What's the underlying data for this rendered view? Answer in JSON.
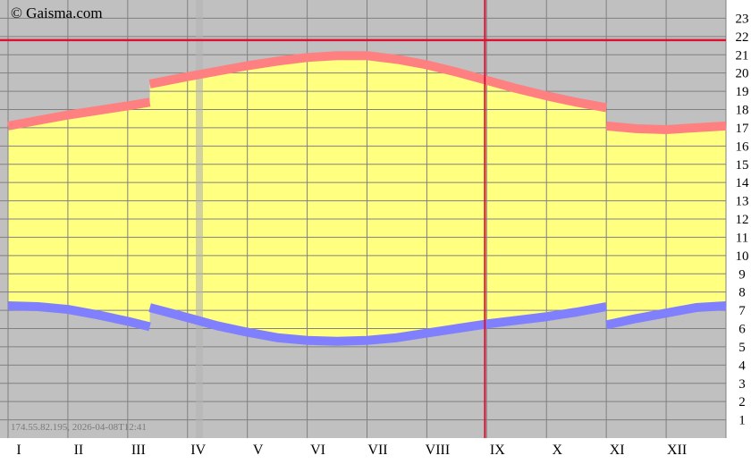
{
  "copyright": "© Gaisma.com",
  "footer_text": "174.55.82.195, 2026-04-08T12:41",
  "colors": {
    "background": "#c0c0c0",
    "daylight": "#ffff80",
    "sunrise": "#8080ff",
    "sunset": "#ff8080",
    "grid": "#808080",
    "marker": "#dd1133"
  },
  "chart_data": {
    "type": "area",
    "title": "",
    "xlabel": "",
    "ylabel": "",
    "x_tick_labels": [
      "I",
      "II",
      "III",
      "IV",
      "V",
      "VI",
      "VII",
      "VIII",
      "IX",
      "X",
      "XI",
      "XII"
    ],
    "y_tick_labels": [
      "1",
      "2",
      "3",
      "4",
      "5",
      "6",
      "7",
      "8",
      "9",
      "10",
      "11",
      "12",
      "13",
      "14",
      "15",
      "16",
      "17",
      "18",
      "19",
      "20",
      "21",
      "22",
      "23"
    ],
    "ylim": [
      0,
      24
    ],
    "xlim": [
      0,
      12
    ],
    "grid": true,
    "month_starts": [
      0,
      1,
      2,
      3,
      4,
      5,
      6,
      7,
      8,
      9,
      10,
      11
    ],
    "dst_change_points": [
      2.37,
      10.0
    ],
    "series": [
      {
        "key": "sunrise",
        "x": [
          0,
          0.5,
          1.0,
          1.5,
          2.0,
          2.37,
          2.37,
          3.0,
          3.5,
          4.0,
          4.5,
          5.0,
          5.5,
          6.0,
          6.5,
          7.0,
          7.5,
          8.0,
          8.5,
          9.0,
          9.5,
          10.0,
          10.0,
          10.5,
          11.0,
          11.5,
          12.0
        ],
        "values": [
          7.25,
          7.2,
          7.05,
          6.75,
          6.4,
          6.1,
          7.15,
          6.6,
          6.15,
          5.8,
          5.5,
          5.35,
          5.3,
          5.35,
          5.5,
          5.75,
          6.0,
          6.25,
          6.45,
          6.65,
          6.9,
          7.2,
          6.2,
          6.55,
          6.85,
          7.15,
          7.25
        ]
      },
      {
        "key": "sunset",
        "x": [
          0,
          0.5,
          1.0,
          1.5,
          2.0,
          2.37,
          2.37,
          3.0,
          3.5,
          4.0,
          4.5,
          5.0,
          5.5,
          6.0,
          6.5,
          7.0,
          7.5,
          8.0,
          8.5,
          9.0,
          9.5,
          10.0,
          10.0,
          10.5,
          11.0,
          11.5,
          12.0
        ],
        "values": [
          17.1,
          17.4,
          17.7,
          17.95,
          18.2,
          18.4,
          19.4,
          19.8,
          20.1,
          20.4,
          20.65,
          20.85,
          20.95,
          20.95,
          20.75,
          20.45,
          20.05,
          19.6,
          19.15,
          18.75,
          18.4,
          18.1,
          17.1,
          16.95,
          16.9,
          17.0,
          17.1
        ]
      }
    ],
    "current_marker": {
      "x": 7.97,
      "y": 21.8
    }
  }
}
